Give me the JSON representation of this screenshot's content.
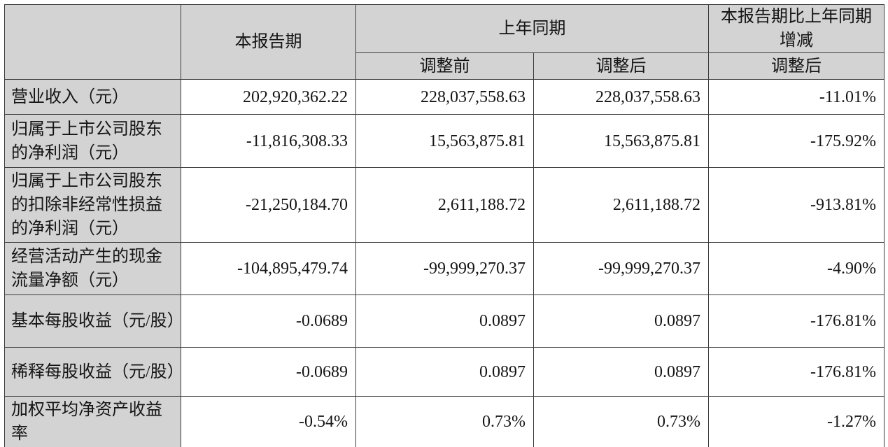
{
  "table": {
    "header": {
      "corner": "",
      "current_period": "本报告期",
      "prior_period_group": "上年同期",
      "prior_before": "调整前",
      "prior_after": "调整后",
      "change_group": "本报告期比上年同期增减",
      "change_sub": "调整后"
    },
    "rows": [
      {
        "label": "营业收入（元）",
        "current": "202,920,362.22",
        "prior_before": "228,037,558.63",
        "prior_after": "228,037,558.63",
        "change": "-11.01%"
      },
      {
        "label": "归属于上市公司股东的净利润（元）",
        "current": "-11,816,308.33",
        "prior_before": "15,563,875.81",
        "prior_after": "15,563,875.81",
        "change": "-175.92%"
      },
      {
        "label": "归属于上市公司股东的扣除非经常性损益的净利润（元）",
        "current": "-21,250,184.70",
        "prior_before": "2,611,188.72",
        "prior_after": "2,611,188.72",
        "change": "-913.81%"
      },
      {
        "label": "经营活动产生的现金流量净额（元）",
        "current": "-104,895,479.74",
        "prior_before": "-99,999,270.37",
        "prior_after": "-99,999,270.37",
        "change": "-4.90%"
      },
      {
        "label": "基本每股收益（元/股）",
        "current": "-0.0689",
        "prior_before": "0.0897",
        "prior_after": "0.0897",
        "change": "-176.81%"
      },
      {
        "label": "稀释每股收益（元/股）",
        "current": "-0.0689",
        "prior_before": "0.0897",
        "prior_after": "0.0897",
        "change": "-176.81%"
      },
      {
        "label": "加权平均净资产收益率",
        "current": "-0.54%",
        "prior_before": "0.73%",
        "prior_after": "0.73%",
        "change": "-1.27%"
      }
    ],
    "colors": {
      "header_bg": "#d3d3d3",
      "label_bg": "#d3d3d3",
      "cell_bg": "#ffffff",
      "border": "#3c3c3c",
      "text": "#141414"
    }
  }
}
